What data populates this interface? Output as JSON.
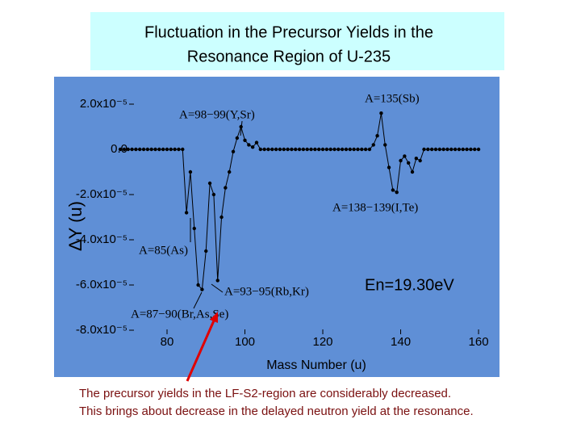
{
  "slide": {
    "title_lines": [
      "Fluctuation in the Precursor Yields in the",
      "Resonance Region of U-235"
    ],
    "caption_lines": [
      "The precursor yields in the LF-S2-region are considerably decreased.",
      "This brings about decrease in the delayed neutron yield at the resonance."
    ]
  },
  "chart_data": {
    "type": "line",
    "color": "#000000",
    "x_label": "Mass Number (u)",
    "y_label": "ΔY (u)",
    "annotations": [
      "A=135(Sb)",
      "A=98−99(Y,Sr)",
      "A=138−139(I,Te)",
      "A=85(As)",
      "A=93−95(Rb,Kr)",
      "A=87−90(Br,As,Se)",
      "En=19.30eV"
    ],
    "x": [
      68,
      69,
      70,
      71,
      72,
      73,
      74,
      75,
      76,
      77,
      78,
      79,
      80,
      81,
      82,
      83,
      84,
      85,
      86,
      87,
      88,
      89,
      90,
      91,
      92,
      93,
      94,
      95,
      96,
      97,
      98,
      99,
      100,
      101,
      102,
      103,
      104,
      105,
      106,
      107,
      108,
      109,
      110,
      111,
      112,
      113,
      114,
      115,
      116,
      117,
      118,
      119,
      120,
      121,
      122,
      123,
      124,
      125,
      126,
      127,
      128,
      129,
      130,
      131,
      132,
      133,
      134,
      135,
      136,
      137,
      138,
      139,
      140,
      141,
      142,
      143,
      144,
      145,
      146,
      147,
      148,
      149,
      150,
      151,
      152,
      153,
      154,
      155,
      156,
      157,
      158,
      159,
      160
    ],
    "values": [
      0,
      0,
      0,
      0,
      0,
      0,
      0,
      0,
      0,
      0,
      0,
      0,
      0,
      0,
      0,
      0,
      0,
      -2.8e-05,
      -1e-05,
      -3.5e-05,
      -6e-05,
      -6.2e-05,
      -4.5e-05,
      -1.5e-05,
      -2e-05,
      -5.8e-05,
      -3e-05,
      -1.7e-05,
      -1e-05,
      -1e-06,
      5e-06,
      1e-05,
      4e-06,
      2e-06,
      1e-06,
      3e-06,
      0,
      0,
      0,
      0,
      0,
      0,
      0,
      0,
      0,
      0,
      0,
      0,
      0,
      0,
      0,
      0,
      0,
      0,
      0,
      0,
      0,
      0,
      0,
      0,
      0,
      0,
      0,
      0,
      0,
      2e-06,
      6e-06,
      1.6e-05,
      2e-06,
      -8e-06,
      -1.8e-05,
      -1.9e-05,
      -5e-06,
      -3e-06,
      -6e-06,
      -1e-05,
      -4e-06,
      -5e-06,
      0,
      0,
      0,
      0,
      0,
      0,
      0,
      0,
      0,
      0,
      0,
      0,
      0,
      0,
      0
    ],
    "xlim": [
      65,
      162
    ],
    "xticks": [
      80,
      100,
      120,
      140,
      160
    ],
    "ylim": [
      -8.6e-05,
      2.6e-05
    ],
    "yticks": [
      {
        "value": 2e-05,
        "label": "2.0x10⁻⁵"
      },
      {
        "value": 0,
        "label": "0.0"
      },
      {
        "value": -2e-05,
        "label": "-2.0x10⁻⁵"
      },
      {
        "value": -4e-05,
        "label": "-4.0x10⁻⁵"
      },
      {
        "value": -6e-05,
        "label": "-6.0x10⁻⁵"
      },
      {
        "value": -8e-05,
        "label": "-8.0x10⁻⁵"
      }
    ]
  }
}
